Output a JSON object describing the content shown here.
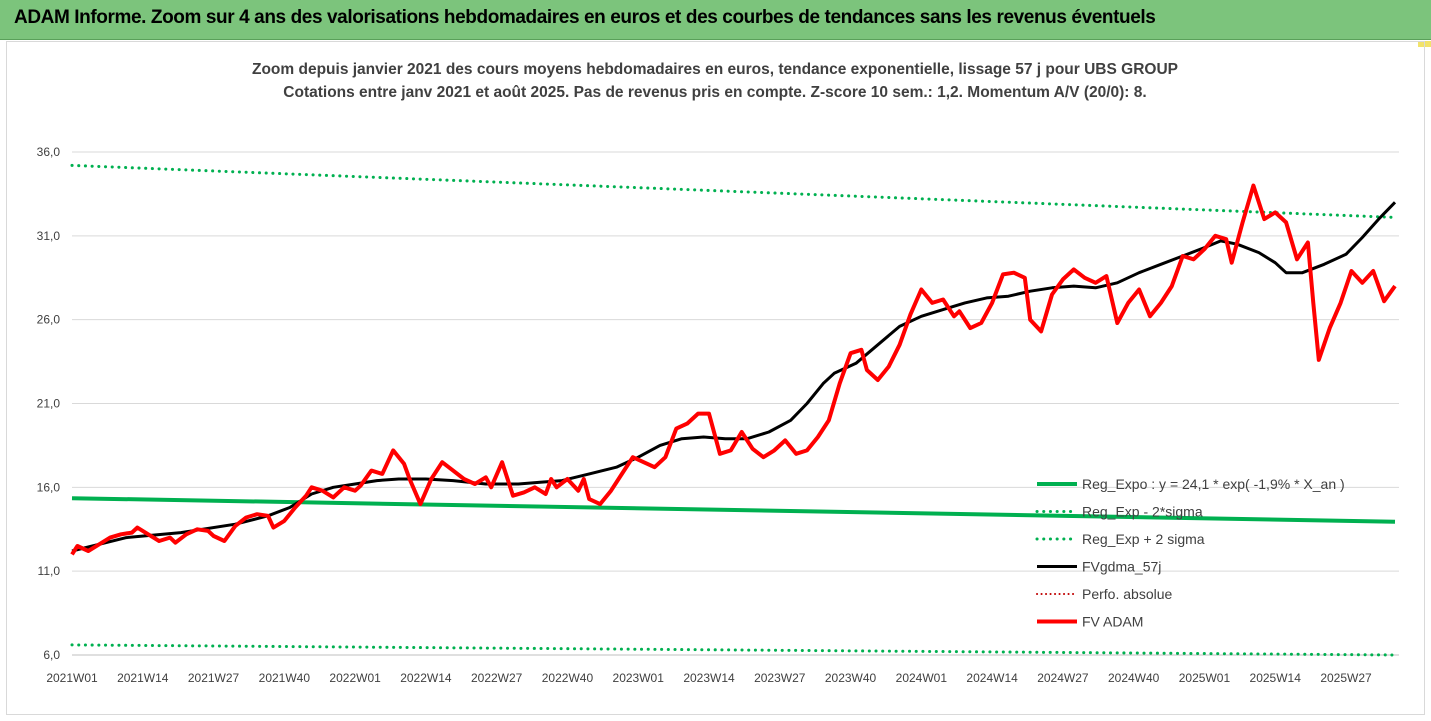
{
  "banner": {
    "title": "ADAM Informe. Zoom sur 4 ans des valorisations hebdomadaires en euros et des courbes de tendances sans les revenus éventuels",
    "color": "#7cc47c"
  },
  "chart_data": {
    "type": "line",
    "title": "Zoom depuis janvier 2021 des cours moyens hebdomadaires en euros, tendance exponentielle, lissage 57 j pour UBS GROUP",
    "subtitle": "Cotations entre janv 2021 et août 2025.  Pas de revenus pris en compte. Z-score 10 sem.: 1,2. Momentum A/V (20/0): 8.",
    "xlabel": "",
    "ylabel": "",
    "ylim": [
      6,
      37
    ],
    "y_ticks": [
      "6,0",
      "11,0",
      "16,0",
      "21,0",
      "26,0",
      "31,0",
      "36,0"
    ],
    "y_tick_values": [
      6,
      11,
      16,
      21,
      26,
      31,
      36
    ],
    "x_ticks": [
      "2021W01",
      "2021W14",
      "2021W27",
      "2021W40",
      "2022W01",
      "2022W14",
      "2022W27",
      "2022W40",
      "2023W01",
      "2023W14",
      "2023W27",
      "2023W40",
      "2024W01",
      "2024W14",
      "2024W27",
      "2024W40",
      "2025W01",
      "2025W14",
      "2025W27"
    ],
    "x_tick_weeks": [
      0,
      13,
      26,
      39,
      52,
      65,
      78,
      91,
      104,
      117,
      130,
      143,
      156,
      169,
      182,
      195,
      208,
      221,
      234
    ],
    "x_range_weeks": [
      0,
      243
    ],
    "grid": "horizontal",
    "legend_position": "bottom-right",
    "series": [
      {
        "name": "Reg_Expo : y = 24,1 * exp( -1,9% *  X_an )",
        "color": "#00b050",
        "style": "solid",
        "width": 4,
        "points": [
          [
            0,
            15.35
          ],
          [
            243,
            13.95
          ]
        ]
      },
      {
        "name": "Reg_Exp - 2*sigma",
        "color": "#00b050",
        "style": "dotted",
        "width": 3,
        "points": [
          [
            0,
            6.6
          ],
          [
            243,
            6.0
          ]
        ]
      },
      {
        "name": "Reg_Exp + 2 sigma",
        "color": "#00b050",
        "style": "dotted",
        "width": 3,
        "points": [
          [
            0,
            35.2
          ],
          [
            243,
            32.1
          ]
        ]
      },
      {
        "name": "FVgdma_57j",
        "color": "#000000",
        "style": "solid",
        "width": 3,
        "points": [
          [
            0,
            12.2
          ],
          [
            10,
            13.0
          ],
          [
            20,
            13.3
          ],
          [
            30,
            13.8
          ],
          [
            36,
            14.3
          ],
          [
            40,
            14.8
          ],
          [
            44,
            15.6
          ],
          [
            48,
            16.0
          ],
          [
            52,
            16.2
          ],
          [
            56,
            16.4
          ],
          [
            60,
            16.5
          ],
          [
            65,
            16.5
          ],
          [
            70,
            16.4
          ],
          [
            76,
            16.2
          ],
          [
            82,
            16.2
          ],
          [
            86,
            16.3
          ],
          [
            90,
            16.4
          ],
          [
            95,
            16.8
          ],
          [
            100,
            17.2
          ],
          [
            104,
            17.8
          ],
          [
            108,
            18.5
          ],
          [
            112,
            18.9
          ],
          [
            116,
            19.0
          ],
          [
            120,
            18.9
          ],
          [
            124,
            18.9
          ],
          [
            128,
            19.3
          ],
          [
            132,
            20.0
          ],
          [
            135,
            21.0
          ],
          [
            138,
            22.2
          ],
          [
            140,
            22.8
          ],
          [
            144,
            23.4
          ],
          [
            148,
            24.5
          ],
          [
            152,
            25.6
          ],
          [
            156,
            26.2
          ],
          [
            160,
            26.6
          ],
          [
            164,
            27.0
          ],
          [
            168,
            27.3
          ],
          [
            172,
            27.4
          ],
          [
            176,
            27.7
          ],
          [
            180,
            27.9
          ],
          [
            184,
            28.0
          ],
          [
            188,
            27.9
          ],
          [
            192,
            28.2
          ],
          [
            196,
            28.8
          ],
          [
            200,
            29.3
          ],
          [
            204,
            29.8
          ],
          [
            208,
            30.3
          ],
          [
            211,
            30.7
          ],
          [
            214,
            30.5
          ],
          [
            218,
            30.0
          ],
          [
            221,
            29.4
          ],
          [
            223,
            28.8
          ],
          [
            226,
            28.8
          ],
          [
            230,
            29.3
          ],
          [
            234,
            29.9
          ],
          [
            237,
            30.9
          ],
          [
            240,
            32.0
          ],
          [
            243,
            33.0
          ]
        ]
      },
      {
        "name": "Perfo. absolue",
        "color": "#c00000",
        "style": "dotted",
        "width": 2,
        "points": []
      },
      {
        "name": "FV ADAM",
        "color": "#ff0000",
        "style": "solid",
        "width": 4,
        "points": [
          [
            0,
            12.0
          ],
          [
            1,
            12.5
          ],
          [
            3,
            12.2
          ],
          [
            5,
            12.6
          ],
          [
            7,
            13.0
          ],
          [
            9,
            13.2
          ],
          [
            11,
            13.3
          ],
          [
            12,
            13.6
          ],
          [
            14,
            13.2
          ],
          [
            16,
            12.8
          ],
          [
            18,
            13.0
          ],
          [
            19,
            12.7
          ],
          [
            21,
            13.2
          ],
          [
            23,
            13.5
          ],
          [
            25,
            13.4
          ],
          [
            26,
            13.1
          ],
          [
            28,
            12.8
          ],
          [
            30,
            13.7
          ],
          [
            32,
            14.2
          ],
          [
            34,
            14.4
          ],
          [
            36,
            14.3
          ],
          [
            37,
            13.6
          ],
          [
            39,
            14.0
          ],
          [
            41,
            14.8
          ],
          [
            43,
            15.5
          ],
          [
            44,
            16.0
          ],
          [
            46,
            15.8
          ],
          [
            48,
            15.4
          ],
          [
            50,
            16.0
          ],
          [
            52,
            15.8
          ],
          [
            53,
            16.1
          ],
          [
            55,
            17.0
          ],
          [
            57,
            16.8
          ],
          [
            59,
            18.2
          ],
          [
            61,
            17.4
          ],
          [
            62,
            16.5
          ],
          [
            64,
            15.0
          ],
          [
            66,
            16.5
          ],
          [
            68,
            17.5
          ],
          [
            70,
            17.0
          ],
          [
            72,
            16.5
          ],
          [
            74,
            16.2
          ],
          [
            76,
            16.6
          ],
          [
            77,
            16.0
          ],
          [
            79,
            17.5
          ],
          [
            81,
            15.5
          ],
          [
            83,
            15.7
          ],
          [
            85,
            16.0
          ],
          [
            87,
            15.6
          ],
          [
            88,
            16.5
          ],
          [
            89,
            16.0
          ],
          [
            91,
            16.5
          ],
          [
            93,
            15.8
          ],
          [
            94,
            16.5
          ],
          [
            95,
            15.3
          ],
          [
            97,
            15.0
          ],
          [
            99,
            15.8
          ],
          [
            101,
            16.8
          ],
          [
            103,
            17.8
          ],
          [
            105,
            17.5
          ],
          [
            107,
            17.2
          ],
          [
            109,
            17.8
          ],
          [
            111,
            19.5
          ],
          [
            113,
            19.8
          ],
          [
            115,
            20.4
          ],
          [
            117,
            20.4
          ],
          [
            119,
            18.0
          ],
          [
            121,
            18.2
          ],
          [
            123,
            19.3
          ],
          [
            125,
            18.3
          ],
          [
            127,
            17.8
          ],
          [
            129,
            18.2
          ],
          [
            131,
            18.8
          ],
          [
            133,
            18.0
          ],
          [
            135,
            18.2
          ],
          [
            137,
            19.0
          ],
          [
            139,
            20.0
          ],
          [
            141,
            22.2
          ],
          [
            143,
            24.0
          ],
          [
            145,
            24.2
          ],
          [
            146,
            23.0
          ],
          [
            148,
            22.4
          ],
          [
            150,
            23.2
          ],
          [
            152,
            24.5
          ],
          [
            154,
            26.3
          ],
          [
            156,
            27.8
          ],
          [
            158,
            27.0
          ],
          [
            160,
            27.2
          ],
          [
            162,
            26.2
          ],
          [
            163,
            26.5
          ],
          [
            165,
            25.5
          ],
          [
            167,
            25.8
          ],
          [
            169,
            27.0
          ],
          [
            171,
            28.7
          ],
          [
            173,
            28.8
          ],
          [
            175,
            28.5
          ],
          [
            176,
            26.0
          ],
          [
            178,
            25.3
          ],
          [
            180,
            27.5
          ],
          [
            182,
            28.4
          ],
          [
            184,
            29.0
          ],
          [
            186,
            28.5
          ],
          [
            188,
            28.2
          ],
          [
            190,
            28.6
          ],
          [
            192,
            25.8
          ],
          [
            194,
            27.0
          ],
          [
            196,
            27.8
          ],
          [
            198,
            26.2
          ],
          [
            200,
            27.0
          ],
          [
            202,
            28.0
          ],
          [
            204,
            29.8
          ],
          [
            206,
            29.6
          ],
          [
            208,
            30.2
          ],
          [
            210,
            31.0
          ],
          [
            212,
            30.8
          ],
          [
            213,
            29.4
          ],
          [
            215,
            31.8
          ],
          [
            217,
            34.0
          ],
          [
            219,
            32.0
          ],
          [
            221,
            32.4
          ],
          [
            223,
            31.8
          ],
          [
            225,
            29.6
          ],
          [
            227,
            30.6
          ],
          [
            228,
            27.0
          ],
          [
            229,
            23.6
          ],
          [
            231,
            25.5
          ],
          [
            233,
            27.0
          ],
          [
            235,
            28.9
          ],
          [
            237,
            28.2
          ],
          [
            239,
            28.9
          ],
          [
            241,
            27.1
          ],
          [
            243,
            28.0
          ]
        ]
      }
    ]
  }
}
